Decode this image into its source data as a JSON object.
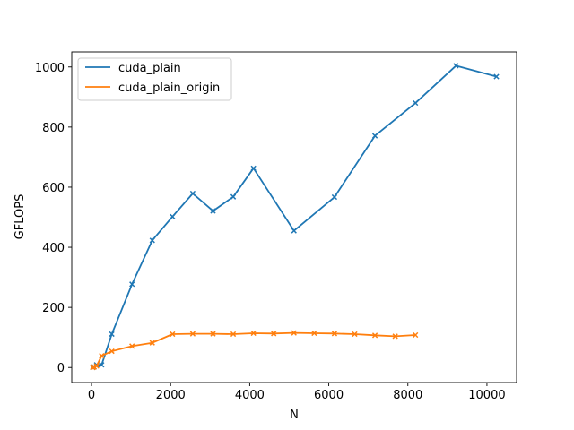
{
  "chart_data": {
    "type": "line",
    "title": "",
    "xlabel": "N",
    "ylabel": "GFLOPS",
    "xlim": [
      -500,
      10750
    ],
    "ylim": [
      -50,
      1050
    ],
    "xticks": [
      0,
      2000,
      4000,
      6000,
      8000,
      10000
    ],
    "yticks": [
      0,
      200,
      400,
      600,
      800,
      1000
    ],
    "grid": false,
    "legend_position": "top-left",
    "marker": "x",
    "series": [
      {
        "name": "cuda_plain",
        "color": "#1f77b4",
        "x": [
          32,
          64,
          128,
          256,
          512,
          1024,
          1536,
          2048,
          2560,
          3072,
          3584,
          4096,
          5120,
          6144,
          7168,
          8192,
          9216,
          10240
        ],
        "y": [
          0.5,
          2,
          9,
          9,
          111,
          277,
          423,
          502,
          579,
          521,
          568,
          663,
          455,
          567,
          771,
          880,
          1004,
          968
        ]
      },
      {
        "name": "cuda_plain_origin",
        "color": "#ff7f0e",
        "x": [
          32,
          64,
          128,
          256,
          512,
          1024,
          1536,
          2048,
          2560,
          3072,
          3584,
          4096,
          4608,
          5120,
          5632,
          6144,
          6656,
          7168,
          7680,
          8192
        ],
        "y": [
          0.3,
          1.5,
          5,
          39,
          54,
          71,
          82,
          111,
          112,
          112,
          111,
          114,
          113,
          115,
          114,
          113,
          111,
          107,
          104,
          108
        ]
      }
    ]
  }
}
